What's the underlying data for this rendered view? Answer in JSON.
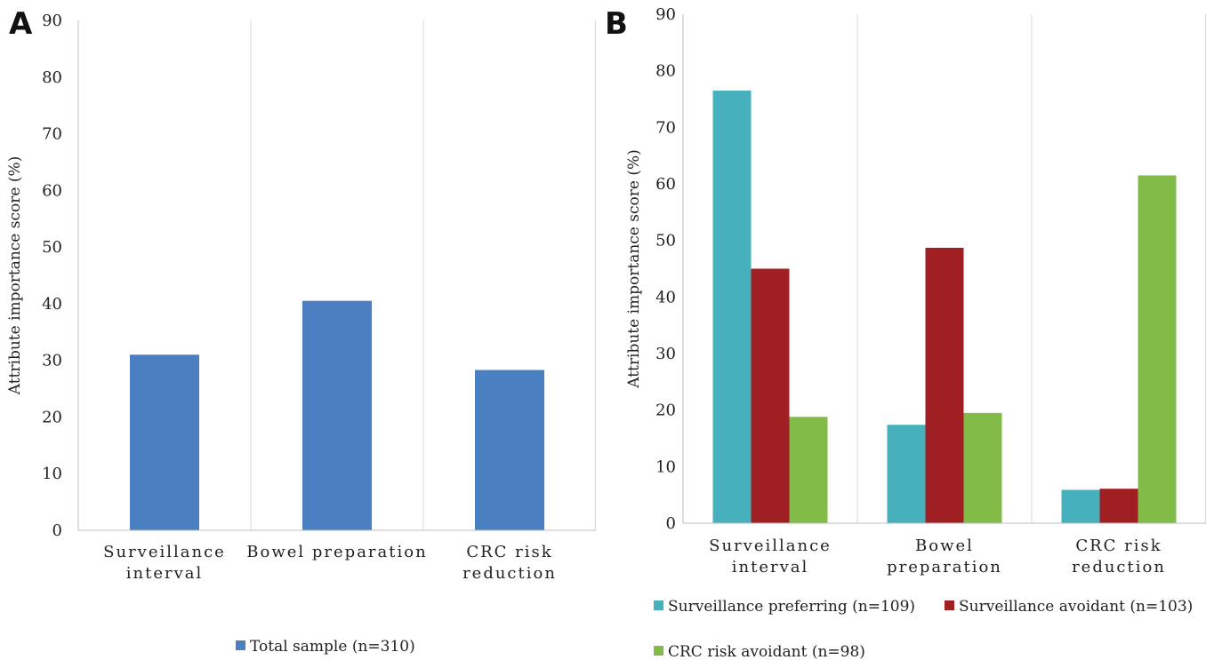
{
  "colors": {
    "total": "#4a7fc1",
    "preferring": "#46b1bd",
    "avoidant": "#a01f23",
    "crc": "#82bb48",
    "grid": "#d9d9d9",
    "axis": "#bfbfbf"
  },
  "chart_data": [
    {
      "panel": "A",
      "type": "bar",
      "ylabel": "Attribute importance score (%)",
      "ylim": [
        0,
        90
      ],
      "yticks": [
        "0",
        "10",
        "20",
        "30",
        "40",
        "50",
        "60",
        "70",
        "80",
        "90"
      ],
      "categories": [
        [
          "Surveillance",
          "interval"
        ],
        [
          "Bowel preparation"
        ],
        [
          "CRC risk",
          "reduction"
        ]
      ],
      "series": [
        {
          "name": "Total sample (n=310)",
          "color_key": "total",
          "values": [
            31,
            40.5,
            28.3
          ]
        }
      ]
    },
    {
      "panel": "B",
      "type": "bar",
      "ylabel": "Attribute importance score (%)",
      "ylim": [
        0,
        90
      ],
      "yticks": [
        "0",
        "10",
        "20",
        "30",
        "40",
        "50",
        "60",
        "70",
        "80",
        "90"
      ],
      "categories": [
        [
          "Surveillance",
          "interval"
        ],
        [
          "Bowel",
          "preparation"
        ],
        [
          "CRC risk",
          "reduction"
        ]
      ],
      "series": [
        {
          "name": "Surveillance preferring (n=109)",
          "color_key": "preferring",
          "values": [
            76.5,
            17.4,
            5.9
          ]
        },
        {
          "name": "Surveillance avoidant (n=103)",
          "color_key": "avoidant",
          "values": [
            45,
            48.7,
            6.1
          ]
        },
        {
          "name": "CRC risk avoidant (n=98)",
          "color_key": "crc",
          "values": [
            18.8,
            19.5,
            61.5
          ]
        }
      ]
    }
  ]
}
